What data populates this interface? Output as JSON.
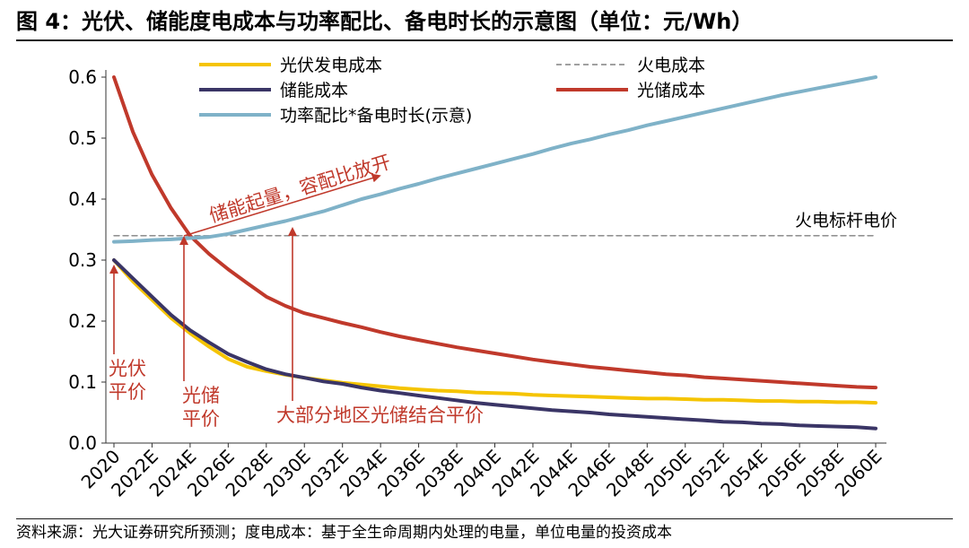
{
  "title": "图 4：光伏、储能度电成本与功率配比、备电时长的示意图（单位：元/Wh）",
  "source": "资料来源：光大证券研究所预测；度电成本：基于全生命周期内处理的电量，单位电量的投资成本",
  "chart_data": {
    "type": "line",
    "title": "图 4：光伏、储能度电成本与功率配比、备电时长的示意图（单位：元/Wh）",
    "ylim": [
      0,
      0.6
    ],
    "yticks": [
      "0.0",
      "0.1",
      "0.2",
      "0.3",
      "0.4",
      "0.5",
      "0.6"
    ],
    "xticks": [
      "2020",
      "2022E",
      "2024E",
      "2026E",
      "2028E",
      "2030E",
      "2032E",
      "2034E",
      "2036E",
      "2038E",
      "2040E",
      "2042E",
      "2044E",
      "2046E",
      "2048E",
      "2050E",
      "2052E",
      "2054E",
      "2056E",
      "2058E",
      "2060E"
    ],
    "x": [
      2020,
      2021,
      2022,
      2023,
      2024,
      2025,
      2026,
      2027,
      2028,
      2029,
      2030,
      2031,
      2032,
      2033,
      2034,
      2035,
      2036,
      2037,
      2038,
      2039,
      2040,
      2041,
      2042,
      2043,
      2044,
      2045,
      2046,
      2047,
      2048,
      2049,
      2050,
      2051,
      2052,
      2053,
      2054,
      2055,
      2056,
      2057,
      2058,
      2059,
      2060
    ],
    "legend_placement": "top",
    "series": [
      {
        "name": "光伏发电成本",
        "color": "#f5c400",
        "style": "solid",
        "values": [
          0.3,
          0.265,
          0.235,
          0.205,
          0.18,
          0.158,
          0.138,
          0.125,
          0.118,
          0.112,
          0.107,
          0.103,
          0.099,
          0.096,
          0.093,
          0.09,
          0.088,
          0.086,
          0.085,
          0.083,
          0.082,
          0.081,
          0.079,
          0.078,
          0.077,
          0.076,
          0.075,
          0.074,
          0.073,
          0.073,
          0.072,
          0.071,
          0.071,
          0.07,
          0.069,
          0.069,
          0.068,
          0.068,
          0.067,
          0.067,
          0.066
        ]
      },
      {
        "name": "火电成本",
        "color": "#808080",
        "style": "dashed",
        "values": [
          0.34,
          0.34,
          0.34,
          0.34,
          0.34,
          0.34,
          0.34,
          0.34,
          0.34,
          0.34,
          0.34,
          0.34,
          0.34,
          0.34,
          0.34,
          0.34,
          0.34,
          0.34,
          0.34,
          0.34,
          0.34,
          0.34,
          0.34,
          0.34,
          0.34,
          0.34,
          0.34,
          0.34,
          0.34,
          0.34,
          0.34,
          0.34,
          0.34,
          0.34,
          0.34,
          0.34,
          0.34,
          0.34,
          0.34,
          0.34,
          0.34
        ]
      },
      {
        "name": "储能成本",
        "color": "#3a3566",
        "style": "solid",
        "values": [
          0.3,
          0.27,
          0.24,
          0.21,
          0.185,
          0.165,
          0.146,
          0.133,
          0.121,
          0.113,
          0.107,
          0.101,
          0.097,
          0.091,
          0.086,
          0.082,
          0.078,
          0.074,
          0.07,
          0.066,
          0.063,
          0.06,
          0.057,
          0.054,
          0.052,
          0.05,
          0.047,
          0.045,
          0.043,
          0.041,
          0.039,
          0.037,
          0.035,
          0.034,
          0.032,
          0.031,
          0.029,
          0.028,
          0.027,
          0.026,
          0.024
        ]
      },
      {
        "name": "光储成本",
        "color": "#c0392b",
        "style": "solid",
        "values": [
          0.6,
          0.51,
          0.44,
          0.385,
          0.34,
          0.31,
          0.285,
          0.262,
          0.24,
          0.225,
          0.213,
          0.205,
          0.197,
          0.19,
          0.182,
          0.175,
          0.169,
          0.163,
          0.157,
          0.152,
          0.147,
          0.142,
          0.137,
          0.133,
          0.129,
          0.125,
          0.122,
          0.119,
          0.116,
          0.113,
          0.111,
          0.108,
          0.106,
          0.104,
          0.102,
          0.1,
          0.098,
          0.096,
          0.094,
          0.092,
          0.091
        ]
      },
      {
        "name": "功率配比*备电时长(示意)",
        "color": "#7fb2c8",
        "style": "solid",
        "values": [
          0.33,
          0.331,
          0.333,
          0.334,
          0.336,
          0.338,
          0.343,
          0.35,
          0.357,
          0.364,
          0.372,
          0.38,
          0.39,
          0.4,
          0.408,
          0.417,
          0.425,
          0.434,
          0.442,
          0.45,
          0.458,
          0.466,
          0.474,
          0.483,
          0.491,
          0.498,
          0.506,
          0.513,
          0.521,
          0.528,
          0.535,
          0.542,
          0.549,
          0.556,
          0.563,
          0.57,
          0.576,
          0.582,
          0.588,
          0.594,
          0.6
        ]
      }
    ],
    "annotations": {
      "ref_line_label": "火电标杆电价",
      "trend_label": "储能起量，容配比放开",
      "pv_parity": [
        "光伏",
        "平价"
      ],
      "storage_parity": [
        "光储",
        "平价"
      ],
      "regional_parity": "大部分地区光储结合平价"
    },
    "annotation_color": "#c0392b"
  }
}
